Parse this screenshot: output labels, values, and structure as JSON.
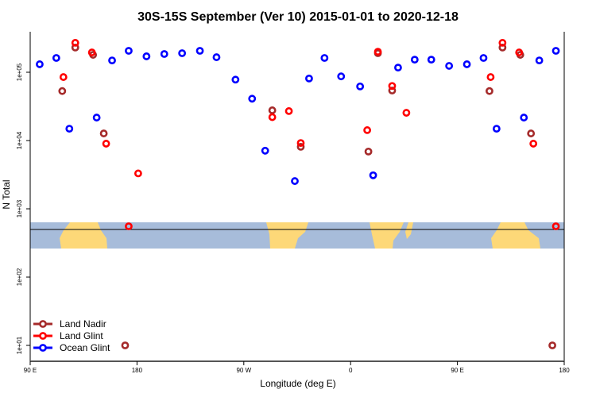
{
  "chart_data": {
    "type": "scatter",
    "title": "30S-15S September (Ver 10)   2015-01-01 to 2020-12-18",
    "xlabel": "Longitude (deg E)",
    "ylabel": "N Total",
    "x_axis_range_deg_east": [
      90,
      540
    ],
    "x_ticks": [
      {
        "value": 90,
        "label": "90 E"
      },
      {
        "value": 180,
        "label": "180"
      },
      {
        "value": 270,
        "label": "90 W"
      },
      {
        "value": 360,
        "label": "0"
      },
      {
        "value": 450,
        "label": "90 E"
      },
      {
        "value": 540,
        "label": "180"
      }
    ],
    "y_scale": "log",
    "ylim": [
      6,
      390000
    ],
    "y_ticks": [
      {
        "value": 10,
        "label": "1e+01"
      },
      {
        "value": 100,
        "label": "1e+02"
      },
      {
        "value": 1000,
        "label": "1e+03"
      },
      {
        "value": 10000,
        "label": "1e+04"
      },
      {
        "value": 100000,
        "label": "1e+05"
      }
    ],
    "grid": false,
    "legend_placement": "bottom-left",
    "map_inset": "land/ocean map of 30S-15S latitude band",
    "map_colors": {
      "ocean": "#A7BCDA",
      "land": "#FDD878"
    },
    "series": [
      {
        "name": "Land Nadir",
        "color": "#A52A2A",
        "points": [
          {
            "lon": 117,
            "value": 53000
          },
          {
            "lon": 128,
            "value": 230000
          },
          {
            "lon": 143,
            "value": 180000
          },
          {
            "lon": 152,
            "value": 12700
          },
          {
            "lon": 170,
            "value": 10
          },
          {
            "lon": -66,
            "value": 27700
          },
          {
            "lon": -42,
            "value": 8100
          },
          {
            "lon": 15,
            "value": 6900
          },
          {
            "lon": 23,
            "value": 190000
          },
          {
            "lon": 35,
            "value": 54000
          }
        ]
      },
      {
        "name": "Land Glint",
        "color": "#FF0000",
        "points": [
          {
            "lon": 118,
            "value": 85000
          },
          {
            "lon": 128,
            "value": 270000
          },
          {
            "lon": 142,
            "value": 195000
          },
          {
            "lon": 154,
            "value": 9000
          },
          {
            "lon": 173,
            "value": 555
          },
          {
            "lon": -179,
            "value": 3300
          },
          {
            "lon": -66,
            "value": 22000
          },
          {
            "lon": -52,
            "value": 27000
          },
          {
            "lon": -42,
            "value": 9200
          },
          {
            "lon": 14,
            "value": 14200
          },
          {
            "lon": 23,
            "value": 200000
          },
          {
            "lon": 35,
            "value": 63000
          },
          {
            "lon": 47,
            "value": 25500
          }
        ]
      },
      {
        "name": "Ocean Glint",
        "color": "#0000FF",
        "points": [
          {
            "lon": 98,
            "value": 131000
          },
          {
            "lon": 112,
            "value": 162000
          },
          {
            "lon": 123,
            "value": 14900
          },
          {
            "lon": 146,
            "value": 21700
          },
          {
            "lon": 159,
            "value": 149000
          },
          {
            "lon": 173,
            "value": 206000
          },
          {
            "lon": -172,
            "value": 171000
          },
          {
            "lon": -157,
            "value": 185000
          },
          {
            "lon": -142,
            "value": 190000
          },
          {
            "lon": -127,
            "value": 206000
          },
          {
            "lon": -113,
            "value": 166000
          },
          {
            "lon": -97,
            "value": 78000
          },
          {
            "lon": -83,
            "value": 41000
          },
          {
            "lon": -72,
            "value": 7100
          },
          {
            "lon": -47,
            "value": 2550
          },
          {
            "lon": -35,
            "value": 81000
          },
          {
            "lon": -22,
            "value": 162000
          },
          {
            "lon": -8,
            "value": 87000
          },
          {
            "lon": 8,
            "value": 62000
          },
          {
            "lon": 19,
            "value": 3100
          },
          {
            "lon": 40,
            "value": 117000
          },
          {
            "lon": 54,
            "value": 153000
          },
          {
            "lon": 68,
            "value": 153000
          },
          {
            "lon": 83,
            "value": 124000
          }
        ]
      }
    ]
  }
}
